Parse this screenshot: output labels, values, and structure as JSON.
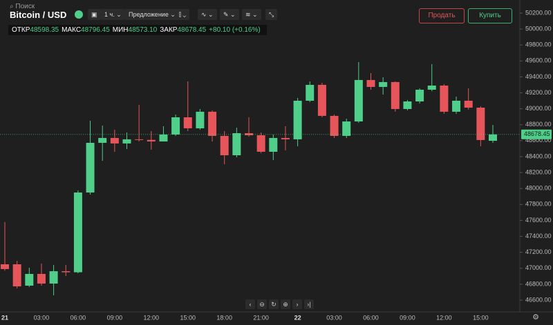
{
  "header": {
    "search": "Поиск",
    "title": "Bitcoin / USD",
    "interval": "1 ч.",
    "price_type": "Предложение",
    "sell": "Продать",
    "buy": "Купить"
  },
  "ohlc": {
    "open_label": "ОТКР",
    "open": "48598.35",
    "high_label": "МАКС",
    "high": "48796.45",
    "low_label": "МИН",
    "low": "48573.10",
    "close_label": "ЗАКР",
    "close": "48678.45",
    "change": "+80.10 (+0.16%)"
  },
  "chart_data": {
    "type": "candlestick",
    "categories": [
      "21",
      null,
      null,
      "03:00",
      null,
      null,
      "06:00",
      null,
      null,
      "09:00",
      null,
      null,
      "12:00",
      null,
      null,
      "15:00",
      null,
      null,
      "18:00",
      null,
      null,
      "21:00",
      null,
      null,
      "22",
      null,
      null,
      "03:00",
      null,
      null,
      "06:00",
      null,
      null,
      "09:00",
      null,
      null,
      "12:00",
      null,
      null,
      "15:00",
      null
    ],
    "open": [
      47050,
      47050,
      46782,
      46929,
      46808,
      46963,
      46950,
      47950,
      48573,
      48634,
      48565,
      48617,
      48610,
      48590,
      48677,
      48893,
      48755,
      48963,
      48660,
      48417,
      48694,
      48668,
      48461,
      48634,
      48617,
      49101,
      49300,
      48911,
      48660,
      48841,
      49361,
      49274,
      49335,
      48997,
      49092,
      49239,
      49291,
      48963,
      49101,
      49014,
      48598.35
    ],
    "high": [
      47580,
      47093,
      47007,
      47059,
      47041,
      47041,
      47976,
      48850,
      48789,
      48737,
      48703,
      49049,
      48720,
      48781,
      48928,
      49343,
      48997,
      48980,
      48720,
      48763,
      48893,
      48703,
      48677,
      48781,
      49136,
      49343,
      49326,
      48928,
      48876,
      49586,
      49447,
      49395,
      49343,
      49110,
      49257,
      49560,
      49309,
      49153,
      49257,
      49032,
      48796.45
    ],
    "low": [
      46970,
      46747,
      46764,
      46782,
      46660,
      46903,
      46937,
      47924,
      48348,
      48460,
      48495,
      48590,
      48487,
      48590,
      48660,
      48720,
      48737,
      48590,
      48305,
      48391,
      48650,
      48443,
      48357,
      48478,
      48530,
      49084,
      48893,
      48634,
      48634,
      48824,
      49239,
      49179,
      48963,
      48980,
      49066,
      49220,
      48937,
      48937,
      48990,
      48530,
      48573.1
    ],
    "close": [
      46990,
      46773,
      46929,
      46808,
      46963,
      46950,
      47950,
      48573,
      48634,
      48565,
      48617,
      48610,
      48590,
      48677,
      48893,
      48755,
      48963,
      48660,
      48417,
      48694,
      48668,
      48461,
      48634,
      48617,
      49101,
      49300,
      48911,
      48660,
      48841,
      49361,
      49274,
      49335,
      48997,
      49092,
      49239,
      49291,
      48963,
      49101,
      49014,
      48608,
      48678.45
    ],
    "up_color": "#4fcf89",
    "down_color": "#e5555a",
    "ylim": [
      46453,
      50364
    ],
    "yticks": [
      {
        "value": 46600,
        "label": "46600.00"
      },
      {
        "value": 46800,
        "label": "46800.00"
      },
      {
        "value": 47000,
        "label": "47000.00"
      },
      {
        "value": 47200,
        "label": "47200.00"
      },
      {
        "value": 47400,
        "label": "47400.00"
      },
      {
        "value": 47600,
        "label": "47600.00"
      },
      {
        "value": 47800,
        "label": "47800.00"
      },
      {
        "value": 48000,
        "label": "48000.00"
      },
      {
        "value": 48200,
        "label": "48200.00"
      },
      {
        "value": 48400,
        "label": "48400.00"
      },
      {
        "value": 48600,
        "label": "48600.00"
      },
      {
        "value": 48800,
        "label": "48800.00"
      },
      {
        "value": 49000,
        "label": "49000.00"
      },
      {
        "value": 49200,
        "label": "49200.00"
      },
      {
        "value": 49400,
        "label": "49400.00"
      },
      {
        "value": 49600,
        "label": "49600.00"
      },
      {
        "value": 49800,
        "label": "49800.00"
      },
      {
        "value": 50000,
        "label": "50000.00"
      },
      {
        "value": 50200,
        "label": "50200.00"
      }
    ],
    "grid": false,
    "last_price_line": true
  }
}
